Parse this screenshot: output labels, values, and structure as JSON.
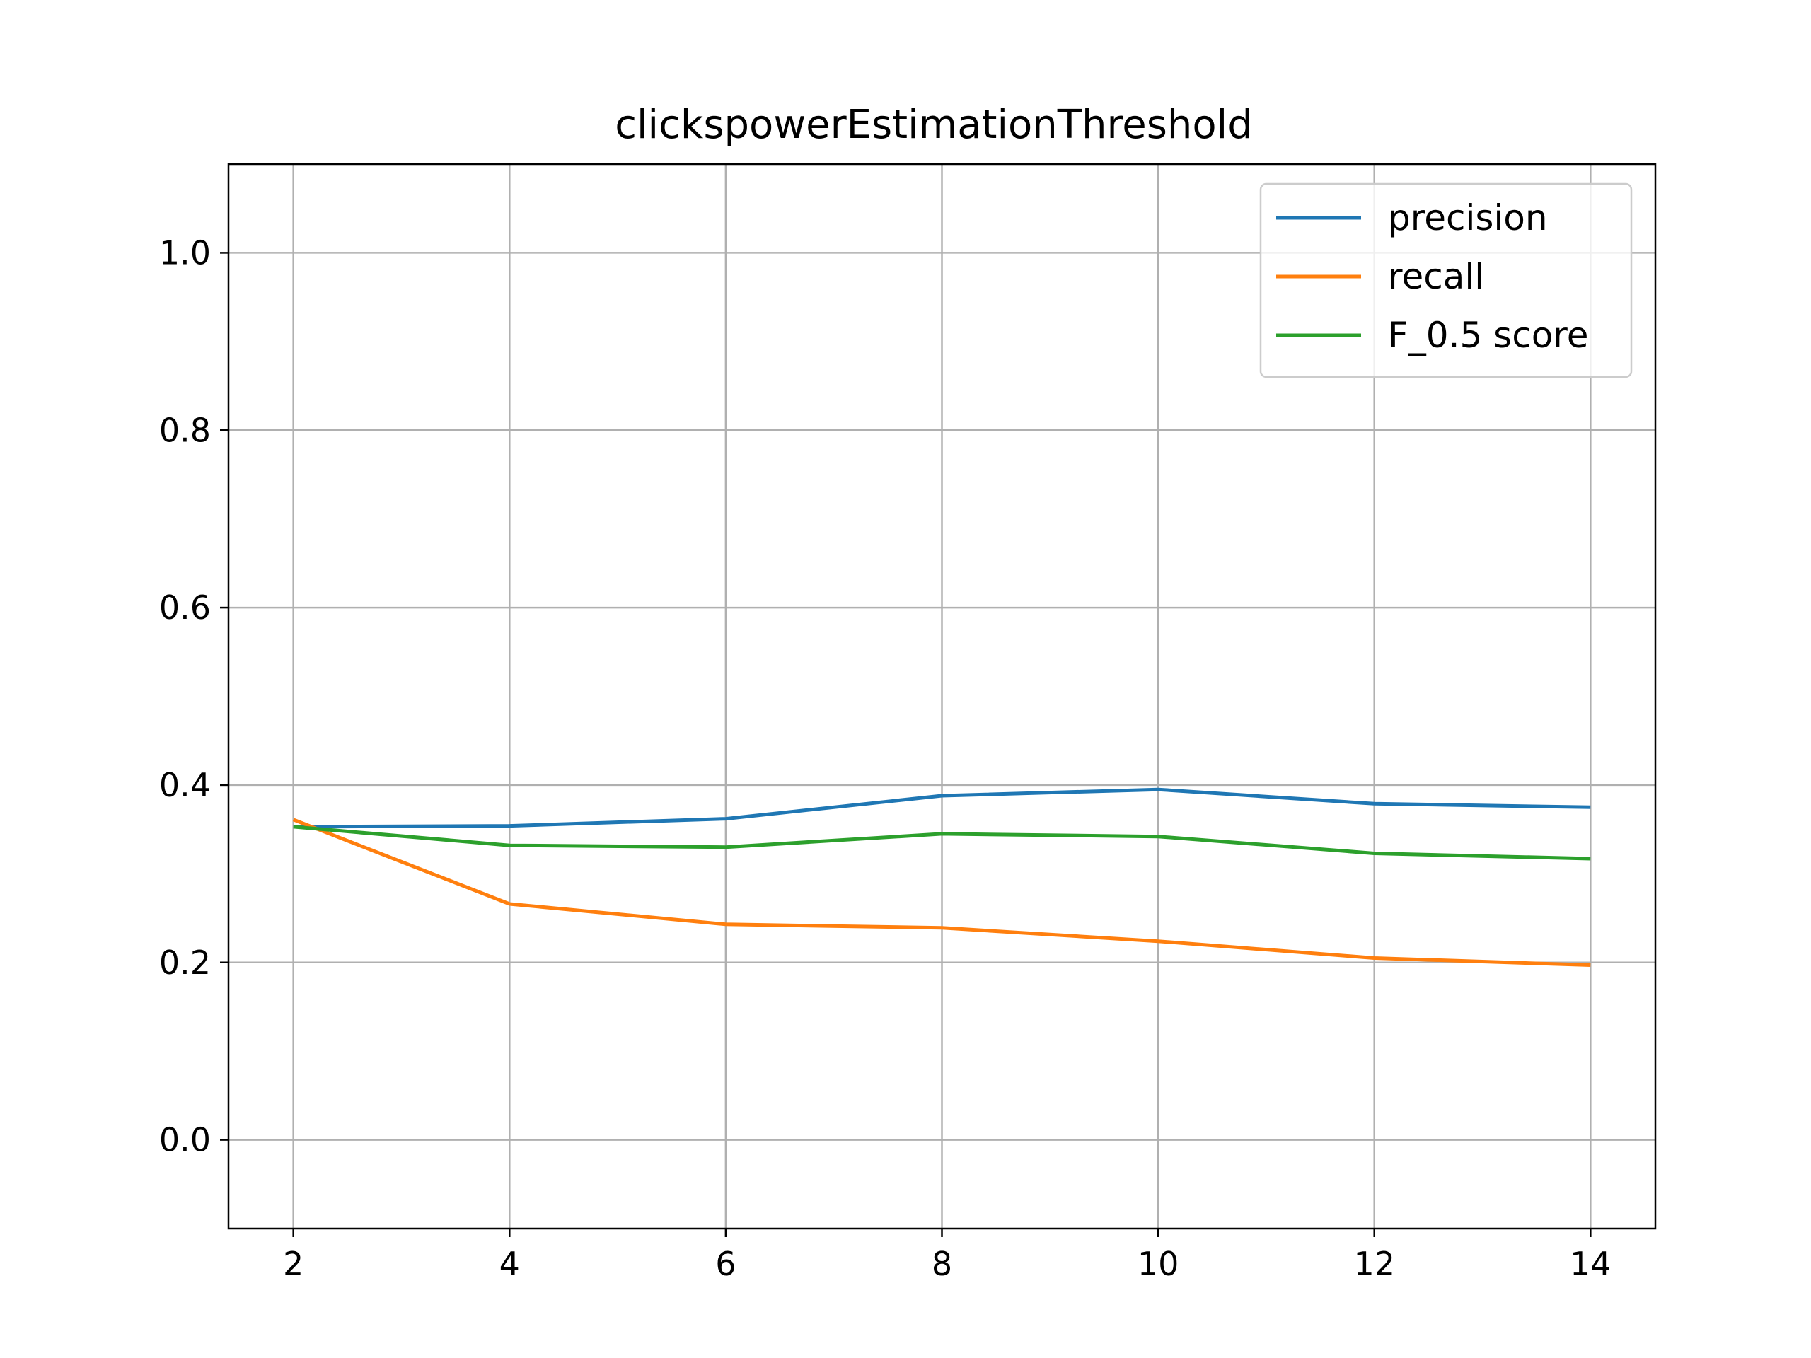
{
  "chart_data": {
    "type": "line",
    "title": "clickspowerEstimationThreshold",
    "xlabel": "",
    "ylabel": "",
    "x": [
      2,
      4,
      6,
      8,
      10,
      12,
      14
    ],
    "xlim": [
      1.4,
      14.6
    ],
    "ylim": [
      -0.1,
      1.1
    ],
    "xticks": [
      2,
      4,
      6,
      8,
      10,
      12,
      14
    ],
    "xtick_labels": [
      "2",
      "4",
      "6",
      "8",
      "10",
      "12",
      "14"
    ],
    "yticks": [
      0.0,
      0.2,
      0.4,
      0.6,
      0.8,
      1.0
    ],
    "ytick_labels": [
      "0.0",
      "0.2",
      "0.4",
      "0.6",
      "0.8",
      "1.0"
    ],
    "grid": true,
    "legend_position": "top-right",
    "series": [
      {
        "name": "precision",
        "color": "#1f77b4",
        "values": [
          0.353,
          0.354,
          0.362,
          0.388,
          0.395,
          0.379,
          0.375
        ]
      },
      {
        "name": "recall",
        "color": "#ff7f0e",
        "values": [
          0.361,
          0.266,
          0.243,
          0.239,
          0.224,
          0.205,
          0.197
        ]
      },
      {
        "name": "F_0.5 score",
        "color": "#2ca02c",
        "values": [
          0.353,
          0.332,
          0.33,
          0.345,
          0.342,
          0.323,
          0.317
        ]
      }
    ]
  }
}
